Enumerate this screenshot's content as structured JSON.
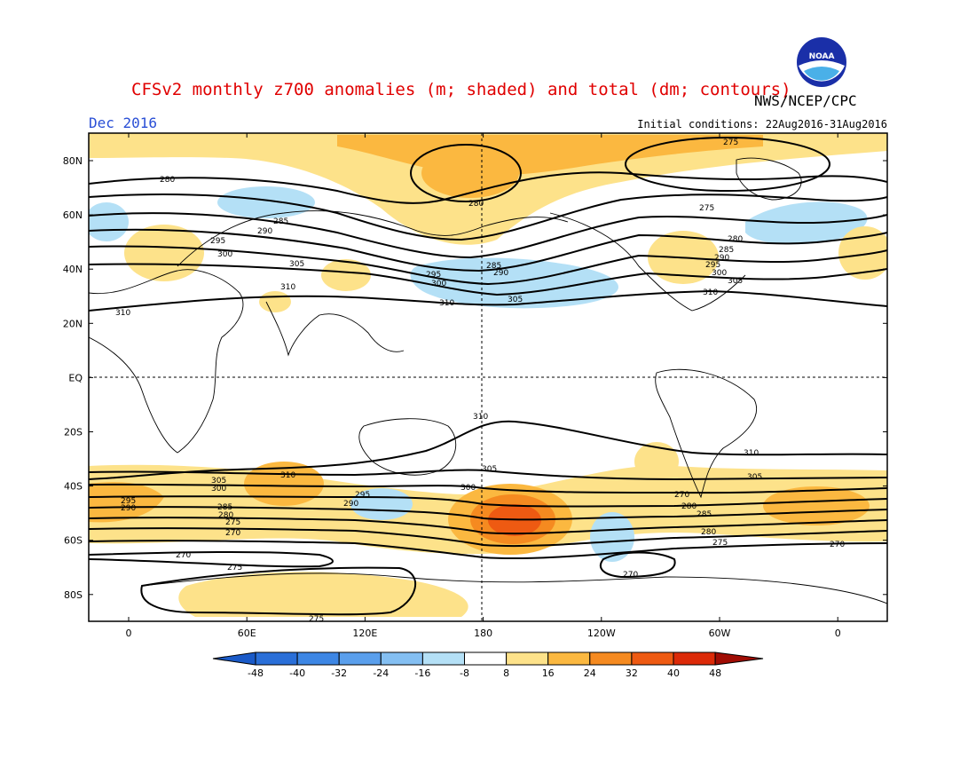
{
  "title": "CFSv2 monthly z700 anomalies (m; shaded) and total (dm; contours)",
  "agency": "NWS/NCEP/CPC",
  "logo_text": "NOAA",
  "month": "Dec 2016",
  "initial_conditions": "Initial conditions: 22Aug2016-31Aug2016",
  "lat_labels": [
    "80N",
    "60N",
    "40N",
    "20N",
    "EQ",
    "20S",
    "40S",
    "60S",
    "80S"
  ],
  "lon_labels": [
    "0",
    "60E",
    "120E",
    "180",
    "120W",
    "60W",
    "0"
  ],
  "colorbar": {
    "ticks": [
      "-48",
      "-40",
      "-32",
      "-24",
      "-16",
      "-8",
      "8",
      "16",
      "24",
      "32",
      "40",
      "48"
    ],
    "colors": [
      "#2a6fd8",
      "#3d86e4",
      "#5a9fec",
      "#84bff2",
      "#b4e0f6",
      "#ffffff",
      "#fde28a",
      "#fbb840",
      "#f58a20",
      "#ee5a12",
      "#dc2a08",
      "#b81004"
    ],
    "low_arrow_color": "#1a5ac8",
    "high_arrow_color": "#a00c04"
  },
  "contour_labels": [
    "275",
    "280",
    "285",
    "290",
    "295",
    "300",
    "305",
    "310",
    "280",
    "285",
    "290",
    "295",
    "300",
    "305",
    "310",
    "310",
    "275",
    "280",
    "285",
    "290",
    "295",
    "300",
    "305",
    "310",
    "310",
    "305",
    "300",
    "295",
    "290",
    "285",
    "280",
    "275",
    "270",
    "310",
    "305",
    "300",
    "295",
    "290",
    "285",
    "280",
    "275",
    "270",
    "310",
    "305",
    "270",
    "275",
    "275",
    "270",
    "270",
    "280"
  ]
}
